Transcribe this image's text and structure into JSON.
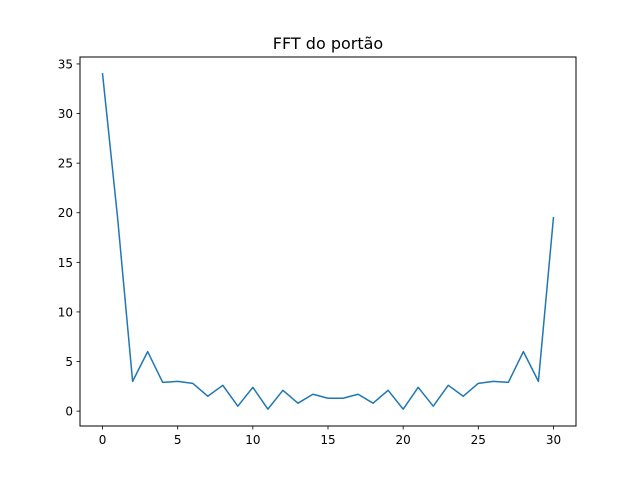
{
  "chart_data": {
    "type": "line",
    "title": "FFT do portão",
    "xlabel": "",
    "ylabel": "",
    "xlim": [
      -1.5,
      31.5
    ],
    "ylim": [
      -1.5,
      35.7
    ],
    "grid": false,
    "x_ticks": [
      0,
      5,
      10,
      15,
      20,
      25,
      30
    ],
    "y_ticks": [
      0,
      5,
      10,
      15,
      20,
      25,
      30,
      35
    ],
    "series": [
      {
        "color": "#1f77b4",
        "x": [
          0,
          1,
          2,
          3,
          4,
          5,
          6,
          7,
          8,
          9,
          10,
          11,
          12,
          13,
          14,
          15,
          16,
          17,
          18,
          19,
          20,
          21,
          22,
          23,
          24,
          25,
          26,
          27,
          28,
          29,
          30
        ],
        "values": [
          34.0,
          19.5,
          3.0,
          6.0,
          2.9,
          3.0,
          2.8,
          1.5,
          2.6,
          0.5,
          2.4,
          0.2,
          2.1,
          0.8,
          1.7,
          1.3,
          1.3,
          1.7,
          0.8,
          2.1,
          0.2,
          2.4,
          0.5,
          2.6,
          1.5,
          2.8,
          3.0,
          2.9,
          6.0,
          3.0,
          19.5
        ]
      }
    ]
  }
}
